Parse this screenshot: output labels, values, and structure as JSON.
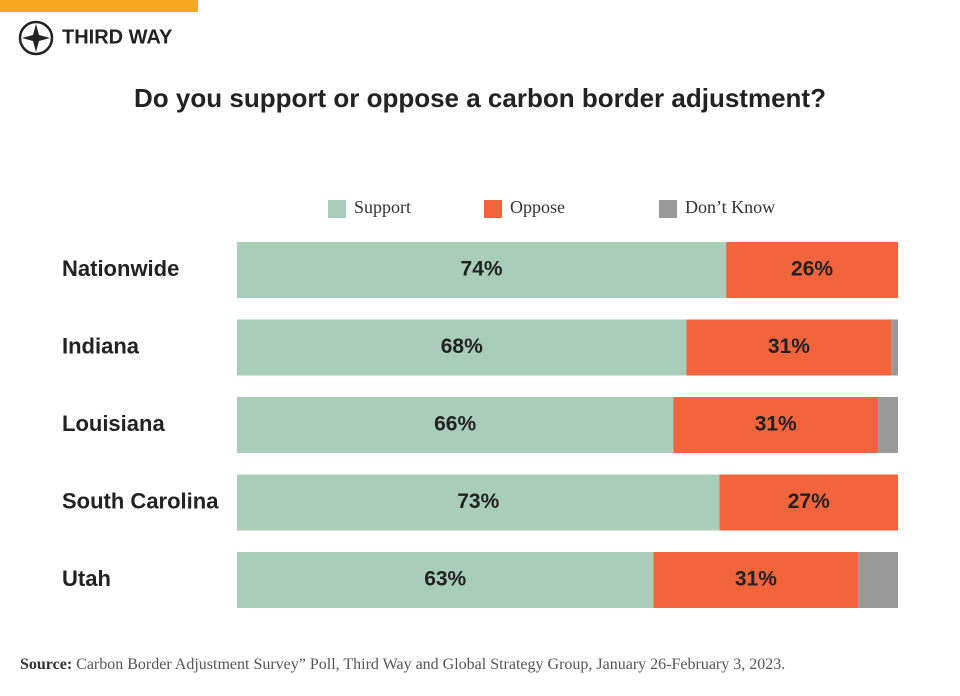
{
  "brand": "THIRD WAY",
  "chart_data": {
    "type": "stacked-barh",
    "title": "Do you support or oppose a carbon border adjustment?",
    "categories": [
      "Nationwide",
      "Indiana",
      "Louisiana",
      "South Carolina",
      "Utah"
    ],
    "series": [
      {
        "name": "Support",
        "color": "#a8cdb9",
        "values": [
          74,
          68,
          66,
          73,
          63
        ],
        "value_labels": [
          "74%",
          "68%",
          "66%",
          "73%",
          "63%"
        ]
      },
      {
        "name": "Oppose",
        "color": "#f2643c",
        "values": [
          26,
          31,
          31,
          27,
          31
        ],
        "value_labels": [
          "26%",
          "31%",
          "31%",
          "27%",
          "31%"
        ]
      },
      {
        "name": "Don’t Know",
        "color": "#999999",
        "values": [
          0,
          1,
          3,
          0,
          6
        ]
      }
    ],
    "xlim": [
      0,
      100
    ]
  },
  "source_label": "Source:",
  "source": "Carbon Border Adjustment Survey” Poll, Third Way and Global Strategy Group, January 26-February 3, 2023."
}
